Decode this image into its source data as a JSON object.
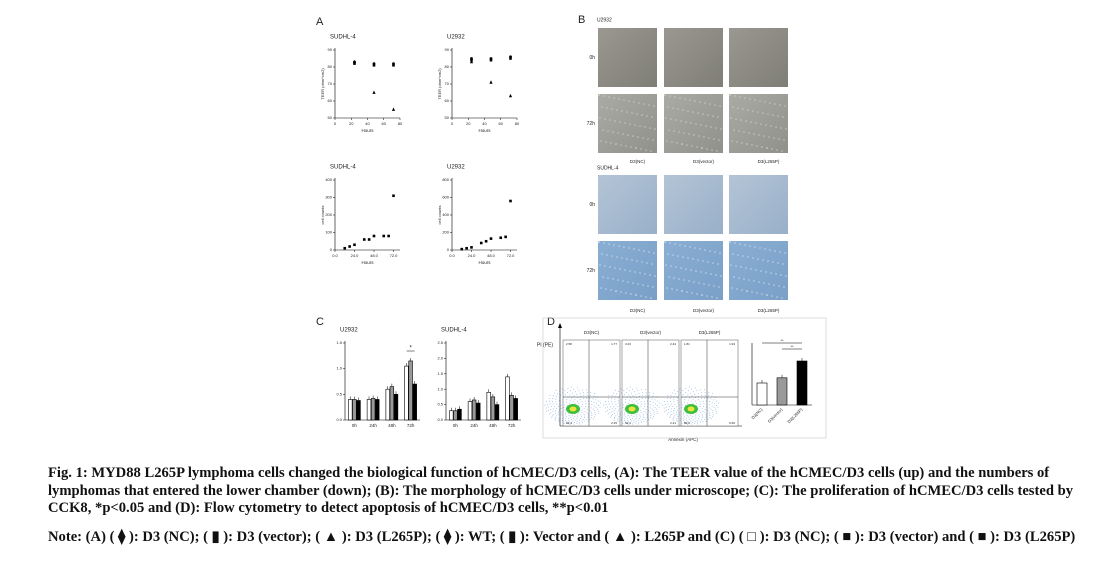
{
  "panel_labels": [
    "A",
    "B",
    "C",
    "D"
  ],
  "chart_data": [
    {
      "type": "scatter",
      "title": "SUDHL-4",
      "xlabel": "Hours",
      "ylabel": "TEER (ohm*cm2)",
      "x": [
        24,
        48,
        72
      ],
      "xlim": [
        0,
        80
      ],
      "xticks": [
        0,
        20,
        40,
        60,
        80
      ],
      "ylim": [
        50,
        90
      ],
      "yticks": [
        50,
        60,
        70,
        80,
        90
      ],
      "series": [
        {
          "name": "D3 (NC)",
          "color": "#000000",
          "values": [
            83,
            82,
            82
          ]
        },
        {
          "name": "D3 (vector)",
          "color": "#000000",
          "values": [
            82,
            81,
            81
          ]
        },
        {
          "name": "D3 (L265P)",
          "color": "#000000",
          "values": [
            83,
            65,
            55
          ]
        }
      ]
    },
    {
      "type": "scatter",
      "title": "U2932",
      "xlabel": "Hours",
      "ylabel": "TEER (ohm*cm2)",
      "x": [
        24,
        48,
        72
      ],
      "xlim": [
        0,
        80
      ],
      "xticks": [
        0,
        20,
        40,
        60,
        80
      ],
      "ylim": [
        50,
        90
      ],
      "yticks": [
        50,
        60,
        70,
        80,
        90
      ],
      "series": [
        {
          "name": "WT",
          "color": "#000000",
          "values": [
            85,
            85,
            86
          ]
        },
        {
          "name": "Vector",
          "color": "#000000",
          "values": [
            84,
            84,
            85
          ]
        },
        {
          "name": "L265P",
          "color": "#000000",
          "values": [
            83,
            71,
            63
          ]
        }
      ]
    },
    {
      "type": "scatter",
      "title": "SUDHL-4",
      "xlabel": "Hours",
      "ylabel": "cell counts",
      "x": [
        12,
        18,
        24,
        36,
        42,
        48,
        60,
        66,
        72
      ],
      "xlim": [
        0,
        80
      ],
      "xticks": [
        {
          "value": 0,
          "label": "0.0"
        },
        {
          "value": 24,
          "label": "24.0"
        },
        {
          "value": 48,
          "label": "48.0"
        },
        {
          "value": 72,
          "label": "72.0"
        }
      ],
      "ylim": [
        0,
        400
      ],
      "yticks": [
        0,
        100,
        200,
        300,
        400
      ],
      "series": [
        {
          "name": "cells",
          "color": "#000000",
          "values": [
            10,
            20,
            30,
            60,
            60,
            80,
            80,
            80,
            310
          ]
        }
      ]
    },
    {
      "type": "scatter",
      "title": "U2932",
      "xlabel": "Hours",
      "ylabel": "cell counts",
      "x": [
        12,
        18,
        24,
        36,
        42,
        48,
        60,
        66,
        72
      ],
      "xlim": [
        0,
        80
      ],
      "xticks": [
        {
          "value": 0,
          "label": "0.0"
        },
        {
          "value": 24,
          "label": "24.0"
        },
        {
          "value": 48,
          "label": "48.0"
        },
        {
          "value": 72,
          "label": "72.0"
        }
      ],
      "ylim": [
        0,
        800
      ],
      "yticks": [
        0,
        200,
        400,
        600,
        800
      ],
      "series": [
        {
          "name": "cells",
          "color": "#000000",
          "values": [
            10,
            20,
            30,
            80,
            100,
            130,
            140,
            150,
            560
          ]
        }
      ]
    },
    {
      "type": "bar",
      "title": "U2932",
      "categories": [
        "0h",
        "24h",
        "48h",
        "72h"
      ],
      "ylim": [
        0,
        1.5
      ],
      "yticks": [
        {
          "value": 0,
          "label": "0.0"
        },
        0.5,
        {
          "value": 1,
          "label": "1.0"
        },
        1.5
      ],
      "annotations": [
        "*"
      ],
      "series": [
        {
          "name": "D3 (NC)",
          "color": "#ffffff",
          "values": [
            0.4,
            0.4,
            0.6,
            1.05
          ]
        },
        {
          "name": "D3 (vector)",
          "color": "#999999",
          "values": [
            0.4,
            0.42,
            0.65,
            1.15
          ]
        },
        {
          "name": "D3 (L265P)",
          "color": "#000000",
          "values": [
            0.38,
            0.4,
            0.5,
            0.7
          ]
        }
      ]
    },
    {
      "type": "bar",
      "title": "SUDHL-4",
      "categories": [
        "0h",
        "24h",
        "48h",
        "72h"
      ],
      "ylim": [
        0,
        2.5
      ],
      "yticks": [
        {
          "value": 0,
          "label": "0.0"
        },
        0.5,
        {
          "value": 1,
          "label": "1.0"
        },
        1.5,
        {
          "value": 2,
          "label": "2.0"
        },
        2.5
      ],
      "series": [
        {
          "name": "D3 (NC)",
          "color": "#ffffff",
          "values": [
            0.3,
            0.6,
            0.9,
            1.4
          ]
        },
        {
          "name": "D3 (vector)",
          "color": "#999999",
          "values": [
            0.3,
            0.65,
            0.75,
            0.8
          ]
        },
        {
          "name": "D3 (L265P)",
          "color": "#000000",
          "values": [
            0.35,
            0.55,
            0.5,
            0.7
          ]
        }
      ]
    },
    {
      "type": "bar",
      "categories": [
        "D3(NC)",
        "D3(vector)",
        "D3(L265P)"
      ],
      "ylim": [
        0,
        15
      ],
      "annotations": [
        "**",
        "**"
      ],
      "series": [
        {
          "name": "apoptosis",
          "colors": [
            "#ffffff",
            "#999999",
            "#000000"
          ],
          "values": [
            5.5,
            6.8,
            11
          ]
        }
      ]
    }
  ],
  "micrographs": {
    "groups": [
      {
        "name": "U2932",
        "rows": [
          "0h",
          "72h"
        ]
      },
      {
        "name": "SUDHL-4",
        "rows": [
          "0h",
          "72h"
        ]
      }
    ],
    "columns": [
      "D3(NC)",
      "D3(vector)",
      "D3(L265P)"
    ]
  },
  "flow": {
    "ylabel": "PI (PE)",
    "xlabel": "Annexin (APC)",
    "plots": [
      {
        "name": "D3(NC)",
        "quadrants": [
          "2.58",
          "1.77",
          "93.4",
          "2.25"
        ]
      },
      {
        "name": "D3(vector)",
        "quadrants": [
          "3.23",
          "2.44",
          "92.1",
          "2.21"
        ]
      },
      {
        "name": "D3(L265P)",
        "quadrants": [
          "1.81",
          "1.93",
          "89.6",
          "6.66"
        ]
      }
    ]
  },
  "caption": {
    "main": "Fig. 1: MYD88 L265P lymphoma cells changed the biological function of hCMEC/D3 cells, (A): The TEER value of the hCMEC/D3 cells (up) and the numbers of lymphomas that entered the lower chamber (down); (B): The morphology of hCMEC/D3 cells under microscope; (C): The proliferation of hCMEC/D3 cells tested by CCK8, *p<0.05 and (D): Flow cytometry to detect apoptosis of hCMEC/D3 cells, **p<0.01",
    "note": "Note: (A) ( ⧫ ): D3 (NC); ( ▮ ): D3 (vector); ( ▲ ): D3 (L265P); ( ⧫ ): WT; ( ▮ ): Vector and ( ▲ ): L265P and (C) ( □ ): D3 (NC); ( ■ ): D3 (vector) and ( ■ ): D3 (L265P)"
  }
}
